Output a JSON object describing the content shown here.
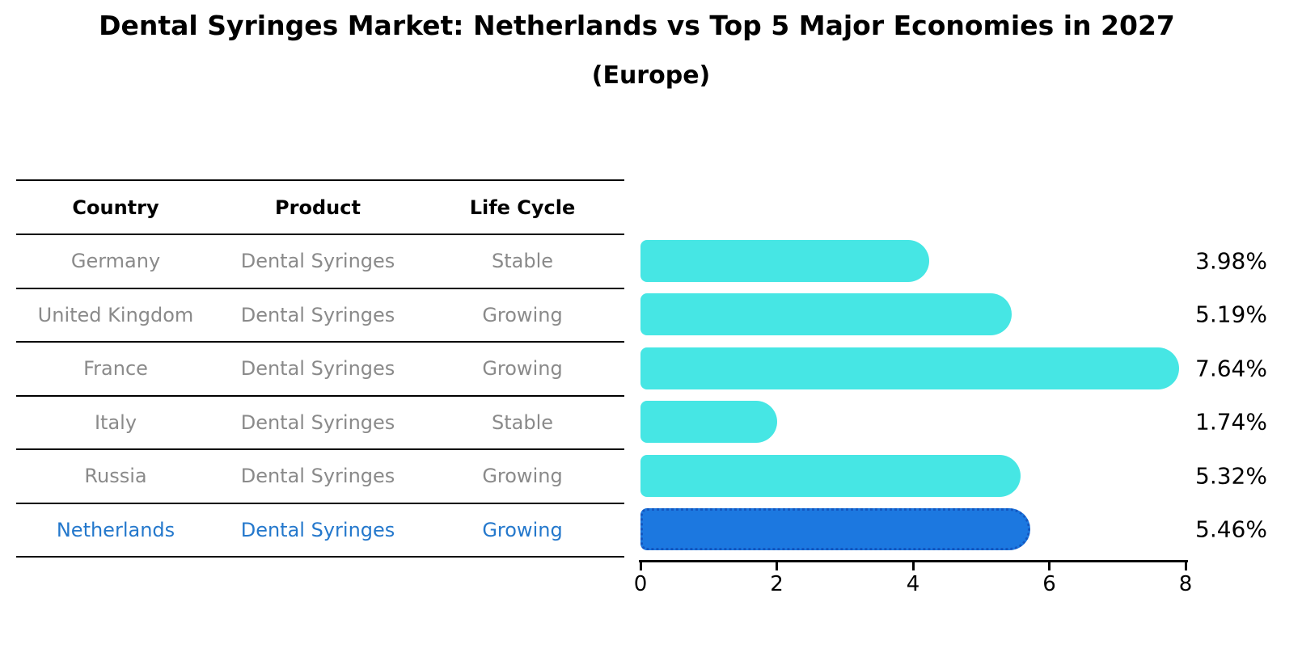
{
  "title": "Dental Syringes Market: Netherlands vs Top 5 Major Economies in 2027",
  "subtitle": "(Europe)",
  "table": {
    "headers": [
      "Country",
      "Product",
      "Life Cycle"
    ],
    "text_color": "#8a8a8a",
    "highlight_text_color": "#2478cc",
    "rows": [
      {
        "country": "Germany",
        "product": "Dental Syringes",
        "life_cycle": "Stable",
        "highlighted": false
      },
      {
        "country": "United Kingdom",
        "product": "Dental Syringes",
        "life_cycle": "Growing",
        "highlighted": false
      },
      {
        "country": "France",
        "product": "Dental Syringes",
        "life_cycle": "Growing",
        "highlighted": false
      },
      {
        "country": "Italy",
        "product": "Dental Syringes",
        "life_cycle": "Stable",
        "highlighted": false
      },
      {
        "country": "Russia",
        "product": "Dental Syringes",
        "life_cycle": "Growing",
        "highlighted": false
      },
      {
        "country": "Netherlands",
        "product": "Dental Syringes",
        "life_cycle": "Growing",
        "highlighted": true
      }
    ]
  },
  "chart_data": {
    "type": "bar",
    "orientation": "horizontal",
    "title": "Dental Syringes Market: Netherlands vs Top 5 Major Economies in 2027 (Europe)",
    "categories": [
      "Germany",
      "United Kingdom",
      "France",
      "Italy",
      "Russia",
      "Netherlands"
    ],
    "values": [
      3.98,
      5.19,
      7.64,
      1.74,
      5.32,
      5.46
    ],
    "value_labels": [
      "3.98%",
      "5.19%",
      "7.64%",
      "1.74%",
      "5.32%",
      "5.46%"
    ],
    "xlim": [
      0,
      8
    ],
    "xticks": [
      "0",
      "2",
      "4",
      "6",
      "8"
    ],
    "grid": false,
    "legend": false,
    "highlight_category": "Netherlands",
    "bar_color": "#46e6e4",
    "highlight_bar_color": "#1c78e0",
    "highlight_border_color": "#1457c0",
    "axis_color": "#000000"
  }
}
